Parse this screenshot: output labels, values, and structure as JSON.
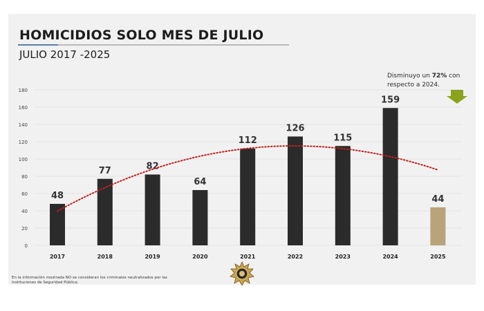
{
  "slide": {
    "title": "HOMICIDIOS SOLO MES DE JULIO",
    "subtitle": "JULIO 2017 -2025",
    "annotation": {
      "prefix": "Disminuyo un ",
      "highlight": "72%",
      "suffix": " con respecto a 2024."
    },
    "footnote": "En la información mostrada NO se consideran los criminales neutralizados por las Instituciones de Seguridad Pública."
  },
  "colors": {
    "bar": "#2b2b2b",
    "highlight_bar": "#b9a37a",
    "trendline": "#c0201f",
    "arrow": "#8ba21d",
    "text": "#1c1c1c"
  },
  "icons": {
    "arrow": "down-arrow-icon",
    "emblem": "police-badge-emblem-icon"
  },
  "chart_data": {
    "type": "bar",
    "categories": [
      "2017",
      "2018",
      "2019",
      "2020",
      "2021",
      "2022",
      "2023",
      "2024",
      "2025"
    ],
    "values": [
      48,
      77,
      82,
      64,
      112,
      126,
      115,
      159,
      44
    ],
    "data_labels": [
      "48",
      "77",
      "82",
      "64",
      "112",
      "126",
      "115",
      "159",
      "44"
    ],
    "highlight_index": 8,
    "yticks": [
      "0",
      "20",
      "40",
      "60",
      "80",
      "100",
      "120",
      "140",
      "160",
      "180"
    ],
    "ylim": [
      0,
      180
    ],
    "trendline": {
      "type": "polynomial",
      "style": "dotted",
      "degree": 2
    },
    "grid": true,
    "legend": "none"
  }
}
